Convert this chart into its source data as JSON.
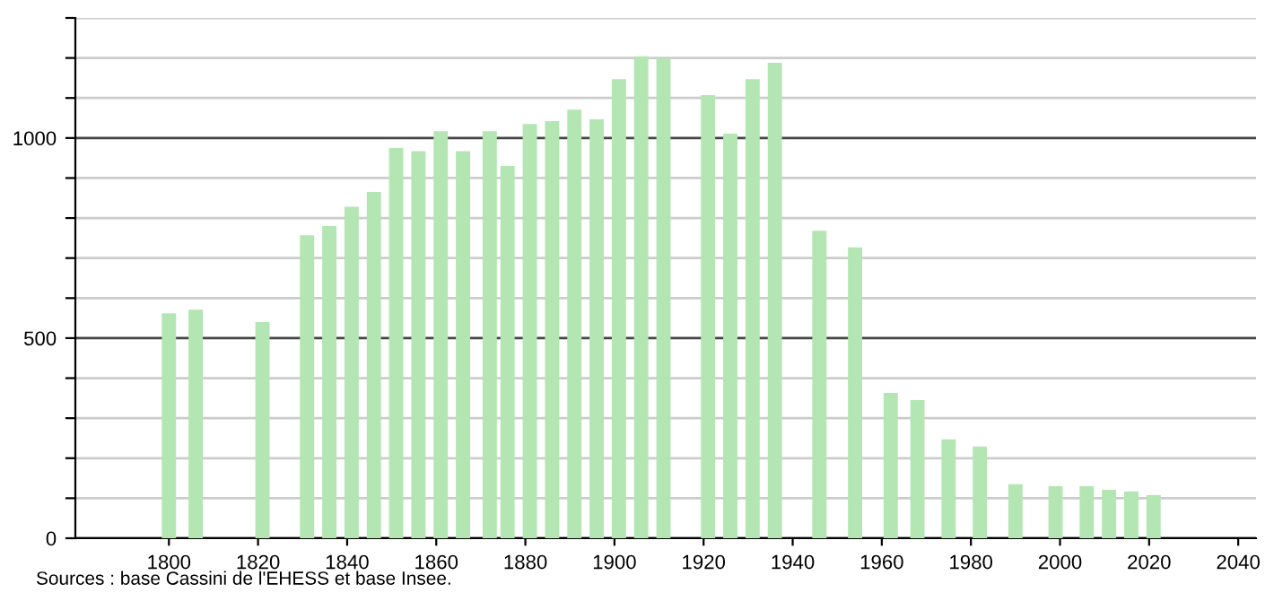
{
  "chart_data": {
    "type": "bar",
    "x": [
      1800,
      1806,
      1821,
      1831,
      1836,
      1841,
      1846,
      1851,
      1856,
      1861,
      1866,
      1872,
      1876,
      1881,
      1886,
      1891,
      1896,
      1901,
      1906,
      1911,
      1921,
      1926,
      1931,
      1936,
      1946,
      1954,
      1962,
      1968,
      1975,
      1982,
      1990,
      1999,
      2006,
      2011,
      2016,
      2021
    ],
    "values": [
      562,
      571,
      540,
      757,
      780,
      828,
      865,
      975,
      967,
      1017,
      967,
      1017,
      930,
      1035,
      1042,
      1071,
      1047,
      1147,
      1204,
      1199,
      1107,
      1011,
      1147,
      1188,
      768,
      727,
      363,
      345,
      247,
      229,
      135,
      130,
      130,
      121,
      117,
      108
    ],
    "color": "#b3e6b3",
    "xlim": [
      1779,
      2044
    ],
    "xticks": [
      1800,
      1820,
      1840,
      1860,
      1880,
      1900,
      1920,
      1940,
      1960,
      1980,
      2000,
      2020,
      2040
    ],
    "ylim": [
      0,
      1300
    ],
    "yticks": [
      0,
      {
        "value": 100,
        "label": null
      },
      {
        "value": 200,
        "label": null
      },
      {
        "value": 300,
        "label": null
      },
      {
        "value": 400,
        "label": null
      },
      500,
      {
        "value": 600,
        "label": null
      },
      {
        "value": 700,
        "label": null
      },
      {
        "value": 800,
        "label": null
      },
      {
        "value": 900,
        "label": null
      },
      1000,
      {
        "value": 1100,
        "label": null
      },
      {
        "value": 1200,
        "label": null
      },
      {
        "value": 1300,
        "label": null
      }
    ],
    "grid": "y",
    "annotations": [
      "Sources : base Cassini de l'EHESS et base Insee."
    ]
  }
}
